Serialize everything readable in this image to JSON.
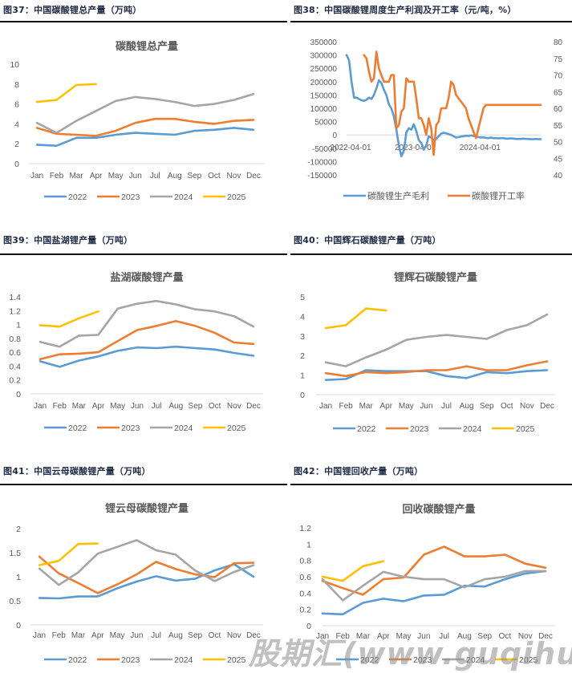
{
  "figures": [
    {
      "id": "fig37",
      "caption": "图37：中国碳酸锂总产量（万吨）",
      "chart_title": "碳酸锂总产量"
    },
    {
      "id": "fig38",
      "caption": "图38：中国碳酸锂周度生产利润及开工率（元/吨，%）",
      "chart_title": ""
    },
    {
      "id": "fig39",
      "caption": "图39：中国盐湖锂产量（万吨）",
      "chart_title": "盐湖碳酸锂产量"
    },
    {
      "id": "fig40",
      "caption": "图40：中国辉石碳酸锂产量（万吨）",
      "chart_title": "锂辉石碳酸锂产量"
    },
    {
      "id": "fig41",
      "caption": "图41：中国云母碳酸锂产量（万吨）",
      "chart_title": "锂云母碳酸锂产量"
    },
    {
      "id": "fig42",
      "caption": "图42：中国锂回收产量（万吨）",
      "chart_title": "回收碳酸锂产量"
    }
  ],
  "series_colors": {
    "2022": "#5b9bd5",
    "2023": "#ed7d31",
    "2024": "#a5a5a5",
    "2025": "#ffc000",
    "profit": "#5b9bd5",
    "utilization": "#ed7d31"
  },
  "watermark": "股期汇(www.guqihui.cn)",
  "chart_data": [
    {
      "id": "fig37",
      "type": "line",
      "title": "碳酸锂总产量",
      "xlabel": "",
      "ylabel": "",
      "categories": [
        "Jan",
        "Feb",
        "Mar",
        "Apr",
        "May",
        "Jun",
        "Jul",
        "Aug",
        "Sep",
        "Oct",
        "Nov",
        "Dec"
      ],
      "yticks": [
        0,
        2,
        4,
        6,
        8,
        10
      ],
      "ylim": [
        0,
        10
      ],
      "grid": false,
      "legend": "bottom",
      "series": [
        {
          "name": "2022",
          "values": [
            1.9,
            1.8,
            2.6,
            2.6,
            2.9,
            3.1,
            3.0,
            2.9,
            3.3,
            3.4,
            3.6,
            3.4
          ]
        },
        {
          "name": "2023",
          "values": [
            3.6,
            3.0,
            2.9,
            2.8,
            3.3,
            4.1,
            4.5,
            4.5,
            4.2,
            4.0,
            4.3,
            4.4
          ]
        },
        {
          "name": "2024",
          "values": [
            4.1,
            3.1,
            4.3,
            5.3,
            6.3,
            6.7,
            6.5,
            6.2,
            5.8,
            6.0,
            6.4,
            7.0
          ]
        },
        {
          "name": "2025",
          "values": [
            6.2,
            6.4,
            7.9,
            8.0
          ]
        }
      ]
    },
    {
      "id": "fig38",
      "type": "line",
      "title": "",
      "xlabel": "",
      "ylabel": "",
      "x_ticks": [
        "2022-04-01",
        "2023-04-01",
        "2024-04-01"
      ],
      "y_left_ticks": [
        350000,
        300000,
        250000,
        200000,
        150000,
        100000,
        50000,
        0,
        -50000,
        -100000,
        -150000
      ],
      "y_left_lim": [
        -150000,
        350000
      ],
      "y_right_ticks": [
        80,
        75,
        70,
        65,
        60,
        55,
        50,
        45,
        40
      ],
      "y_right_lim": [
        40,
        80
      ],
      "grid": false,
      "legend": "bottom",
      "series": [
        {
          "name": "碳酸锂生产毛利",
          "axis": "left",
          "note": "weekly, approx. Apr 2022 – Mar 2025",
          "x": [
            0,
            2,
            4,
            6,
            8,
            10,
            12,
            14,
            16,
            18,
            20,
            22,
            24,
            26,
            28,
            30,
            32,
            34,
            36,
            38,
            40,
            42,
            44,
            46,
            48,
            50,
            52,
            54,
            56,
            58,
            60,
            62,
            64,
            66,
            68,
            70,
            72,
            74,
            76,
            78,
            80,
            82,
            84,
            86,
            88,
            90,
            92,
            94,
            96,
            98,
            100,
            102,
            104,
            106,
            108,
            110,
            112,
            114,
            116,
            118,
            120,
            122,
            124,
            126,
            128,
            130,
            132,
            134,
            136,
            138,
            140,
            142,
            144,
            146,
            148,
            150,
            152,
            154,
            156
          ],
          "values": [
            300000,
            280000,
            200000,
            140000,
            140000,
            135000,
            130000,
            128000,
            132000,
            140000,
            135000,
            150000,
            175000,
            205000,
            195000,
            170000,
            150000,
            115000,
            100000,
            70000,
            20000,
            -40000,
            -80000,
            -60000,
            10000,
            25000,
            20000,
            40000,
            15000,
            -20000,
            -30000,
            -55000,
            -40000,
            -5000,
            -10000,
            -20000,
            -15000,
            -5000,
            5000,
            8000,
            6000,
            3000,
            0,
            -5000,
            -10000,
            -8000,
            -6000,
            -5000,
            -3000,
            -4000,
            -2000,
            -4000,
            -6000,
            -8000,
            -10000,
            -9000,
            -11000,
            -12000,
            -10000,
            -12000,
            -12000,
            -13000,
            -12000,
            -12000,
            -14000,
            -14000,
            -13000,
            -14000,
            -15000,
            -15000,
            -15000,
            -14000,
            -15000,
            -15000,
            -16000,
            -16000,
            -15000,
            -16000,
            -16000
          ]
        },
        {
          "name": "碳酸锂开工率",
          "axis": "right",
          "note": "weekly, approx. Jul 2022 – Mar 2025",
          "x": [
            14,
            16,
            18,
            20,
            22,
            24,
            26,
            28,
            30,
            32,
            34,
            36,
            38,
            40,
            42,
            44,
            46,
            48,
            50,
            52,
            54,
            56,
            58,
            60,
            62,
            64,
            66,
            68,
            70,
            72,
            74,
            76,
            78,
            80,
            82,
            84,
            86,
            88,
            90,
            92,
            94,
            96,
            98,
            100,
            102,
            104,
            106,
            108,
            110,
            112,
            114,
            116,
            118,
            120,
            122,
            124,
            126,
            128,
            130,
            132,
            134,
            136,
            138,
            140,
            142,
            144,
            146,
            148,
            150,
            152,
            154,
            156
          ],
          "values": [
            76,
            75,
            71,
            68,
            69,
            77,
            72,
            70,
            68,
            68,
            68,
            70,
            70,
            54,
            55,
            59,
            60,
            69,
            68,
            68,
            68,
            63,
            57,
            57,
            55,
            52,
            57,
            54,
            46,
            55,
            56,
            60,
            60,
            60,
            63,
            68,
            67,
            64,
            63,
            62,
            61,
            60,
            57,
            55,
            53,
            51,
            54,
            57,
            60,
            61,
            61,
            61,
            61,
            61,
            61,
            61,
            61,
            61,
            61,
            61,
            61,
            61,
            61,
            61,
            61,
            61,
            61,
            61,
            61,
            61,
            61,
            61
          ]
        }
      ]
    },
    {
      "id": "fig39",
      "type": "line",
      "title": "盐湖碳酸锂产量",
      "categories": [
        "Jan",
        "Feb",
        "Mar",
        "Apr",
        "May",
        "Jun",
        "Jul",
        "Aug",
        "Sep",
        "Oct",
        "Nov",
        "Dec"
      ],
      "yticks": [
        0,
        0.2,
        0.4,
        0.6,
        0.8,
        1,
        1.2,
        1.4
      ],
      "ylim": [
        0,
        1.4
      ],
      "grid": false,
      "legend": "bottom",
      "series": [
        {
          "name": "2022",
          "values": [
            0.47,
            0.39,
            0.48,
            0.54,
            0.62,
            0.67,
            0.66,
            0.68,
            0.66,
            0.64,
            0.59,
            0.55
          ]
        },
        {
          "name": "2023",
          "values": [
            0.5,
            0.57,
            0.58,
            0.6,
            0.76,
            0.92,
            0.98,
            1.05,
            0.98,
            0.88,
            0.74,
            0.72
          ]
        },
        {
          "name": "2024",
          "values": [
            0.75,
            0.68,
            0.84,
            0.85,
            1.23,
            1.3,
            1.34,
            1.29,
            1.22,
            1.19,
            1.12,
            0.97
          ]
        },
        {
          "name": "2025",
          "values": [
            0.99,
            0.97,
            1.09,
            1.19
          ]
        }
      ]
    },
    {
      "id": "fig40",
      "type": "line",
      "title": "锂辉石碳酸锂产量",
      "categories": [
        "Jan",
        "Feb",
        "Mar",
        "Apr",
        "May",
        "Jun",
        "Jul",
        "Aug",
        "Sep",
        "Oct",
        "Nov",
        "Dec"
      ],
      "yticks": [
        0,
        1,
        2,
        3,
        4,
        5
      ],
      "ylim": [
        0,
        5
      ],
      "grid": false,
      "legend": "bottom",
      "series": [
        {
          "name": "2022",
          "values": [
            0.75,
            0.8,
            1.25,
            1.2,
            1.2,
            1.2,
            0.95,
            0.85,
            1.15,
            1.1,
            1.2,
            1.25
          ]
        },
        {
          "name": "2023",
          "values": [
            1.1,
            0.95,
            1.15,
            1.1,
            1.15,
            1.25,
            1.25,
            1.45,
            1.25,
            1.25,
            1.5,
            1.7
          ]
        },
        {
          "name": "2024",
          "values": [
            1.65,
            1.45,
            1.9,
            2.3,
            2.8,
            2.95,
            3.05,
            2.95,
            2.85,
            3.3,
            3.55,
            4.1
          ]
        },
        {
          "name": "2025",
          "values": [
            3.4,
            3.55,
            4.4,
            4.3
          ]
        }
      ]
    },
    {
      "id": "fig41",
      "type": "line",
      "title": "锂云母碳酸锂产量",
      "categories": [
        "Jan",
        "Feb",
        "Mar",
        "Apr",
        "May",
        "Jun",
        "Jul",
        "Aug",
        "Sep",
        "Oct",
        "Nov",
        "Dec"
      ],
      "yticks": [
        0,
        0.5,
        1,
        1.5,
        2
      ],
      "ylim": [
        0,
        2
      ],
      "grid": false,
      "legend": "bottom",
      "series": [
        {
          "name": "2022",
          "values": [
            0.56,
            0.55,
            0.59,
            0.59,
            0.76,
            0.9,
            1.01,
            0.92,
            0.96,
            1.13,
            1.26,
            1.0
          ]
        },
        {
          "name": "2023",
          "values": [
            1.42,
            1.07,
            0.87,
            0.66,
            0.84,
            1.05,
            1.31,
            1.16,
            1.05,
            0.99,
            1.28,
            1.29
          ]
        },
        {
          "name": "2024",
          "values": [
            1.17,
            0.83,
            1.09,
            1.48,
            1.62,
            1.76,
            1.55,
            1.46,
            1.13,
            0.91,
            1.1,
            1.24
          ]
        },
        {
          "name": "2025",
          "values": [
            1.24,
            1.33,
            1.68,
            1.69
          ]
        }
      ]
    },
    {
      "id": "fig42",
      "type": "line",
      "title": "回收碳酸锂产量",
      "categories": [
        "Jan",
        "Feb",
        "Mar",
        "Apr",
        "May",
        "Jun",
        "Jul",
        "Aug",
        "Sep",
        "Oct",
        "Nov",
        "Dec"
      ],
      "yticks": [
        0,
        0.2,
        0.4,
        0.6,
        0.8,
        1,
        1.2
      ],
      "ylim": [
        0,
        1.2
      ],
      "grid": false,
      "legend": "bottom",
      "series": [
        {
          "name": "2022",
          "values": [
            0.15,
            0.14,
            0.28,
            0.33,
            0.3,
            0.37,
            0.38,
            0.49,
            0.48,
            0.57,
            0.64,
            0.67
          ]
        },
        {
          "name": "2023",
          "values": [
            0.55,
            0.46,
            0.38,
            0.57,
            0.59,
            0.87,
            0.97,
            0.85,
            0.85,
            0.87,
            0.76,
            0.71
          ]
        },
        {
          "name": "2024",
          "values": [
            0.57,
            0.31,
            0.49,
            0.66,
            0.6,
            0.57,
            0.57,
            0.47,
            0.57,
            0.6,
            0.67,
            0.67
          ]
        },
        {
          "name": "2025",
          "values": [
            0.6,
            0.55,
            0.73,
            0.79
          ]
        }
      ]
    }
  ]
}
